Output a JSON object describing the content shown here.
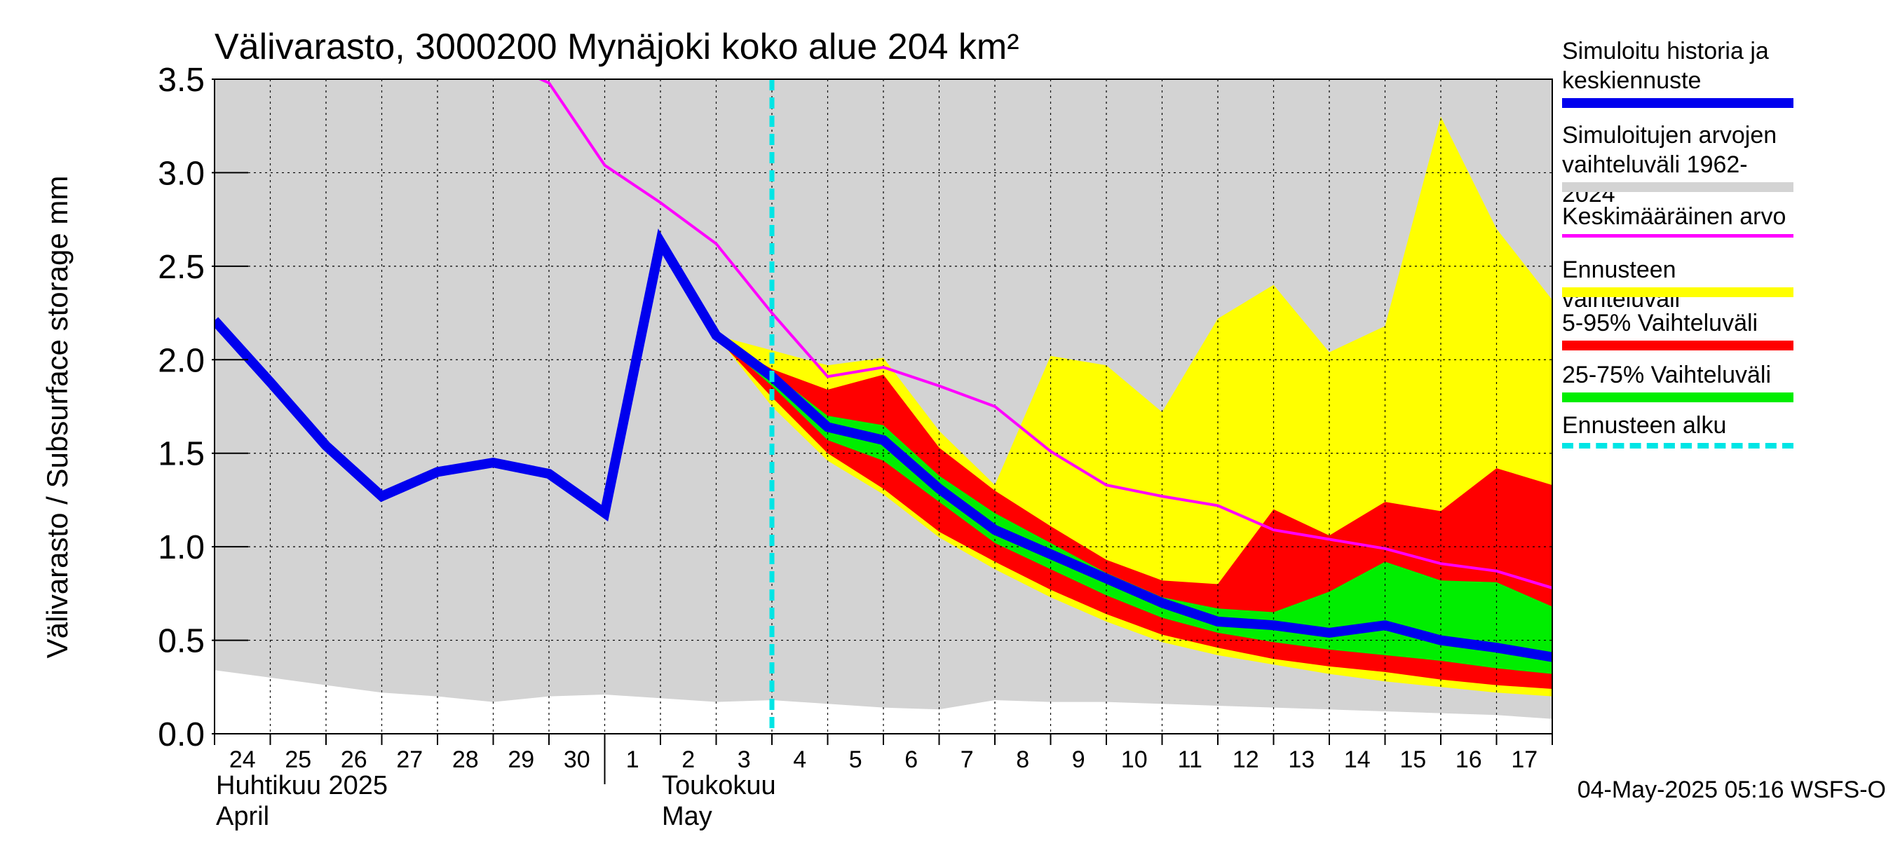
{
  "chart_data": {
    "type": "area",
    "title": "Välivarasto, 3000200 Mynäjoki koko alue 204 km²",
    "ylabel": "Välivarasto / Subsurface storage  mm",
    "ylim": [
      0,
      3.5
    ],
    "yticks": [
      0.0,
      0.5,
      1.0,
      1.5,
      2.0,
      2.5,
      3.0,
      3.5
    ],
    "ytick_labels": [
      "0.0",
      "0.5",
      "1.0",
      "1.5",
      "2.0",
      "2.5",
      "3.0",
      "3.5"
    ],
    "x_start": 0,
    "x_end": 24,
    "day_labels": [
      "24",
      "25",
      "26",
      "27",
      "28",
      "29",
      "30",
      "1",
      "2",
      "3",
      "4",
      "5",
      "6",
      "7",
      "8",
      "9",
      "10",
      "11",
      "12",
      "13",
      "14",
      "15",
      "16",
      "17"
    ],
    "month_labels": [
      {
        "fi": "Huhtikuu  2025",
        "en": "April",
        "x": 0
      },
      {
        "fi": "Toukokuu",
        "en": "May",
        "x": 8
      }
    ],
    "month_boundary_x": 7.0,
    "forecast_start_x": 10.0,
    "series": [
      {
        "name": "Simuloitujen arvojen vaihteluväli 1962-2024",
        "kind": "band",
        "color": "#d3d3d3",
        "x": [
          0,
          1,
          2,
          3,
          4,
          5,
          6,
          7,
          8,
          9,
          10,
          11,
          12,
          13,
          14,
          15,
          16,
          17,
          18,
          19,
          20,
          21,
          22,
          23,
          24
        ],
        "upper": [
          3.5,
          3.5,
          3.5,
          3.5,
          3.5,
          3.5,
          3.5,
          3.5,
          3.5,
          3.5,
          3.5,
          3.5,
          3.5,
          3.5,
          3.5,
          3.5,
          3.5,
          3.5,
          3.5,
          3.5,
          3.5,
          3.5,
          3.5,
          3.5,
          3.5
        ],
        "lower": [
          0.34,
          0.3,
          0.26,
          0.22,
          0.2,
          0.17,
          0.2,
          0.21,
          0.19,
          0.17,
          0.18,
          0.16,
          0.14,
          0.13,
          0.18,
          0.17,
          0.17,
          0.16,
          0.15,
          0.14,
          0.13,
          0.12,
          0.11,
          0.1,
          0.08
        ]
      },
      {
        "name": "Ennusteen vaihteluväli",
        "kind": "band",
        "color": "#ffff00",
        "x": [
          9,
          10,
          11,
          12,
          13,
          14,
          15,
          16,
          17,
          18,
          19,
          20,
          21,
          22,
          23,
          24
        ],
        "upper": [
          2.13,
          2.05,
          1.97,
          2.01,
          1.62,
          1.33,
          2.02,
          1.97,
          1.72,
          2.22,
          2.4,
          2.04,
          2.18,
          3.3,
          2.7,
          2.32
        ],
        "lower": [
          2.13,
          1.75,
          1.46,
          1.28,
          1.05,
          0.88,
          0.73,
          0.6,
          0.49,
          0.42,
          0.37,
          0.32,
          0.28,
          0.25,
          0.22,
          0.2
        ]
      },
      {
        "name": "5-95% Vaihteluväli",
        "kind": "band",
        "color": "#ff0000",
        "x": [
          9,
          10,
          11,
          12,
          13,
          14,
          15,
          16,
          17,
          18,
          19,
          20,
          21,
          22,
          23,
          24
        ],
        "upper": [
          2.12,
          1.95,
          1.84,
          1.92,
          1.53,
          1.3,
          1.11,
          0.93,
          0.82,
          0.8,
          1.2,
          1.06,
          1.24,
          1.19,
          1.42,
          1.33
        ],
        "lower": [
          2.12,
          1.8,
          1.5,
          1.31,
          1.08,
          0.92,
          0.77,
          0.64,
          0.53,
          0.46,
          0.4,
          0.36,
          0.33,
          0.29,
          0.26,
          0.24
        ]
      },
      {
        "name": "25-75% Vaihteluväli",
        "kind": "band",
        "color": "#00ee00",
        "x": [
          9,
          10,
          11,
          12,
          13,
          14,
          15,
          16,
          17,
          18,
          19,
          20,
          21,
          22,
          23,
          24
        ],
        "upper": [
          2.12,
          1.93,
          1.7,
          1.65,
          1.38,
          1.18,
          1.02,
          0.86,
          0.73,
          0.67,
          0.65,
          0.76,
          0.92,
          0.82,
          0.81,
          0.68
        ],
        "lower": [
          2.12,
          1.86,
          1.57,
          1.46,
          1.24,
          1.02,
          0.88,
          0.74,
          0.62,
          0.54,
          0.49,
          0.45,
          0.42,
          0.39,
          0.35,
          0.32
        ]
      },
      {
        "name": "Keskimääräinen arvo",
        "kind": "line",
        "color": "#ff00ff",
        "x": [
          5.7,
          6,
          7,
          8,
          9,
          10,
          11,
          12,
          13,
          14,
          15,
          16,
          17,
          18,
          19,
          20,
          21,
          22,
          23,
          24
        ],
        "values": [
          3.52,
          3.48,
          3.04,
          2.84,
          2.62,
          2.25,
          1.91,
          1.96,
          1.86,
          1.75,
          1.51,
          1.33,
          1.27,
          1.22,
          1.09,
          1.04,
          0.99,
          0.91,
          0.87,
          0.78
        ]
      },
      {
        "name": "Simuloitu historia ja keskiennuste",
        "kind": "line",
        "color": "#0000ee",
        "x": [
          0,
          1,
          2,
          3,
          4,
          5,
          6,
          7,
          8,
          9,
          10,
          11,
          12,
          13,
          14,
          15,
          16,
          17,
          18,
          19,
          20,
          21,
          22,
          23,
          24
        ],
        "values": [
          2.21,
          1.88,
          1.54,
          1.27,
          1.4,
          1.45,
          1.39,
          1.18,
          2.63,
          2.13,
          1.91,
          1.64,
          1.57,
          1.31,
          1.09,
          0.96,
          0.83,
          0.7,
          0.6,
          0.58,
          0.54,
          0.58,
          0.5,
          0.46,
          0.41
        ]
      }
    ]
  },
  "legend": {
    "items": [
      {
        "label": "Simuloitu historia ja\nkeskiennuste",
        "color": "#0000ee",
        "style": "thick"
      },
      {
        "label": "Simuloitujen arvojen\nvaihteluväli 1962-2024",
        "color": "#d3d3d3",
        "style": "thick"
      },
      {
        "label": "Keskimääräinen arvo",
        "color": "#ff00ff",
        "style": "thin"
      },
      {
        "label": "Ennusteen vaihteluväli",
        "color": "#ffff00",
        "style": "thick"
      },
      {
        "label": "5-95% Vaihteluväli",
        "color": "#ff0000",
        "style": "thick"
      },
      {
        "label": "25-75% Vaihteluväli",
        "color": "#00ee00",
        "style": "thick"
      },
      {
        "label": "Ennusteen alku",
        "color": "#00e5e5",
        "style": "dashed"
      }
    ]
  },
  "footer": {
    "timestamp": "04-May-2025 05:16 WSFS-O"
  }
}
